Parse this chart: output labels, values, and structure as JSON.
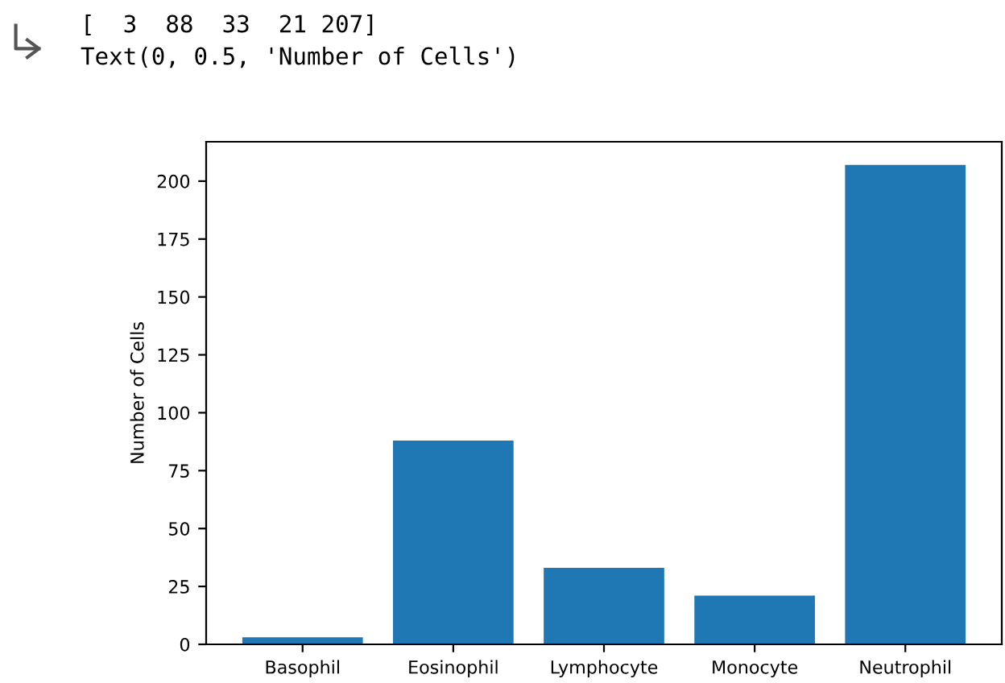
{
  "chart_data": {
    "type": "bar",
    "ylabel": "Number of Cells",
    "categories": [
      "Basophil",
      "Eosinophil",
      "Lymphocyte",
      "Monocyte",
      "Neutrophil"
    ],
    "values": [
      3,
      88,
      33,
      21,
      207
    ],
    "color": "#1f77b4",
    "ylim": [
      0,
      217
    ],
    "yticks": [
      0,
      25,
      50,
      75,
      100,
      125,
      150,
      175,
      200
    ],
    "grid": false,
    "annotations": [
      "[  3  88  33  21 207]",
      "Text(0, 0.5, 'Number of Cells')"
    ]
  }
}
